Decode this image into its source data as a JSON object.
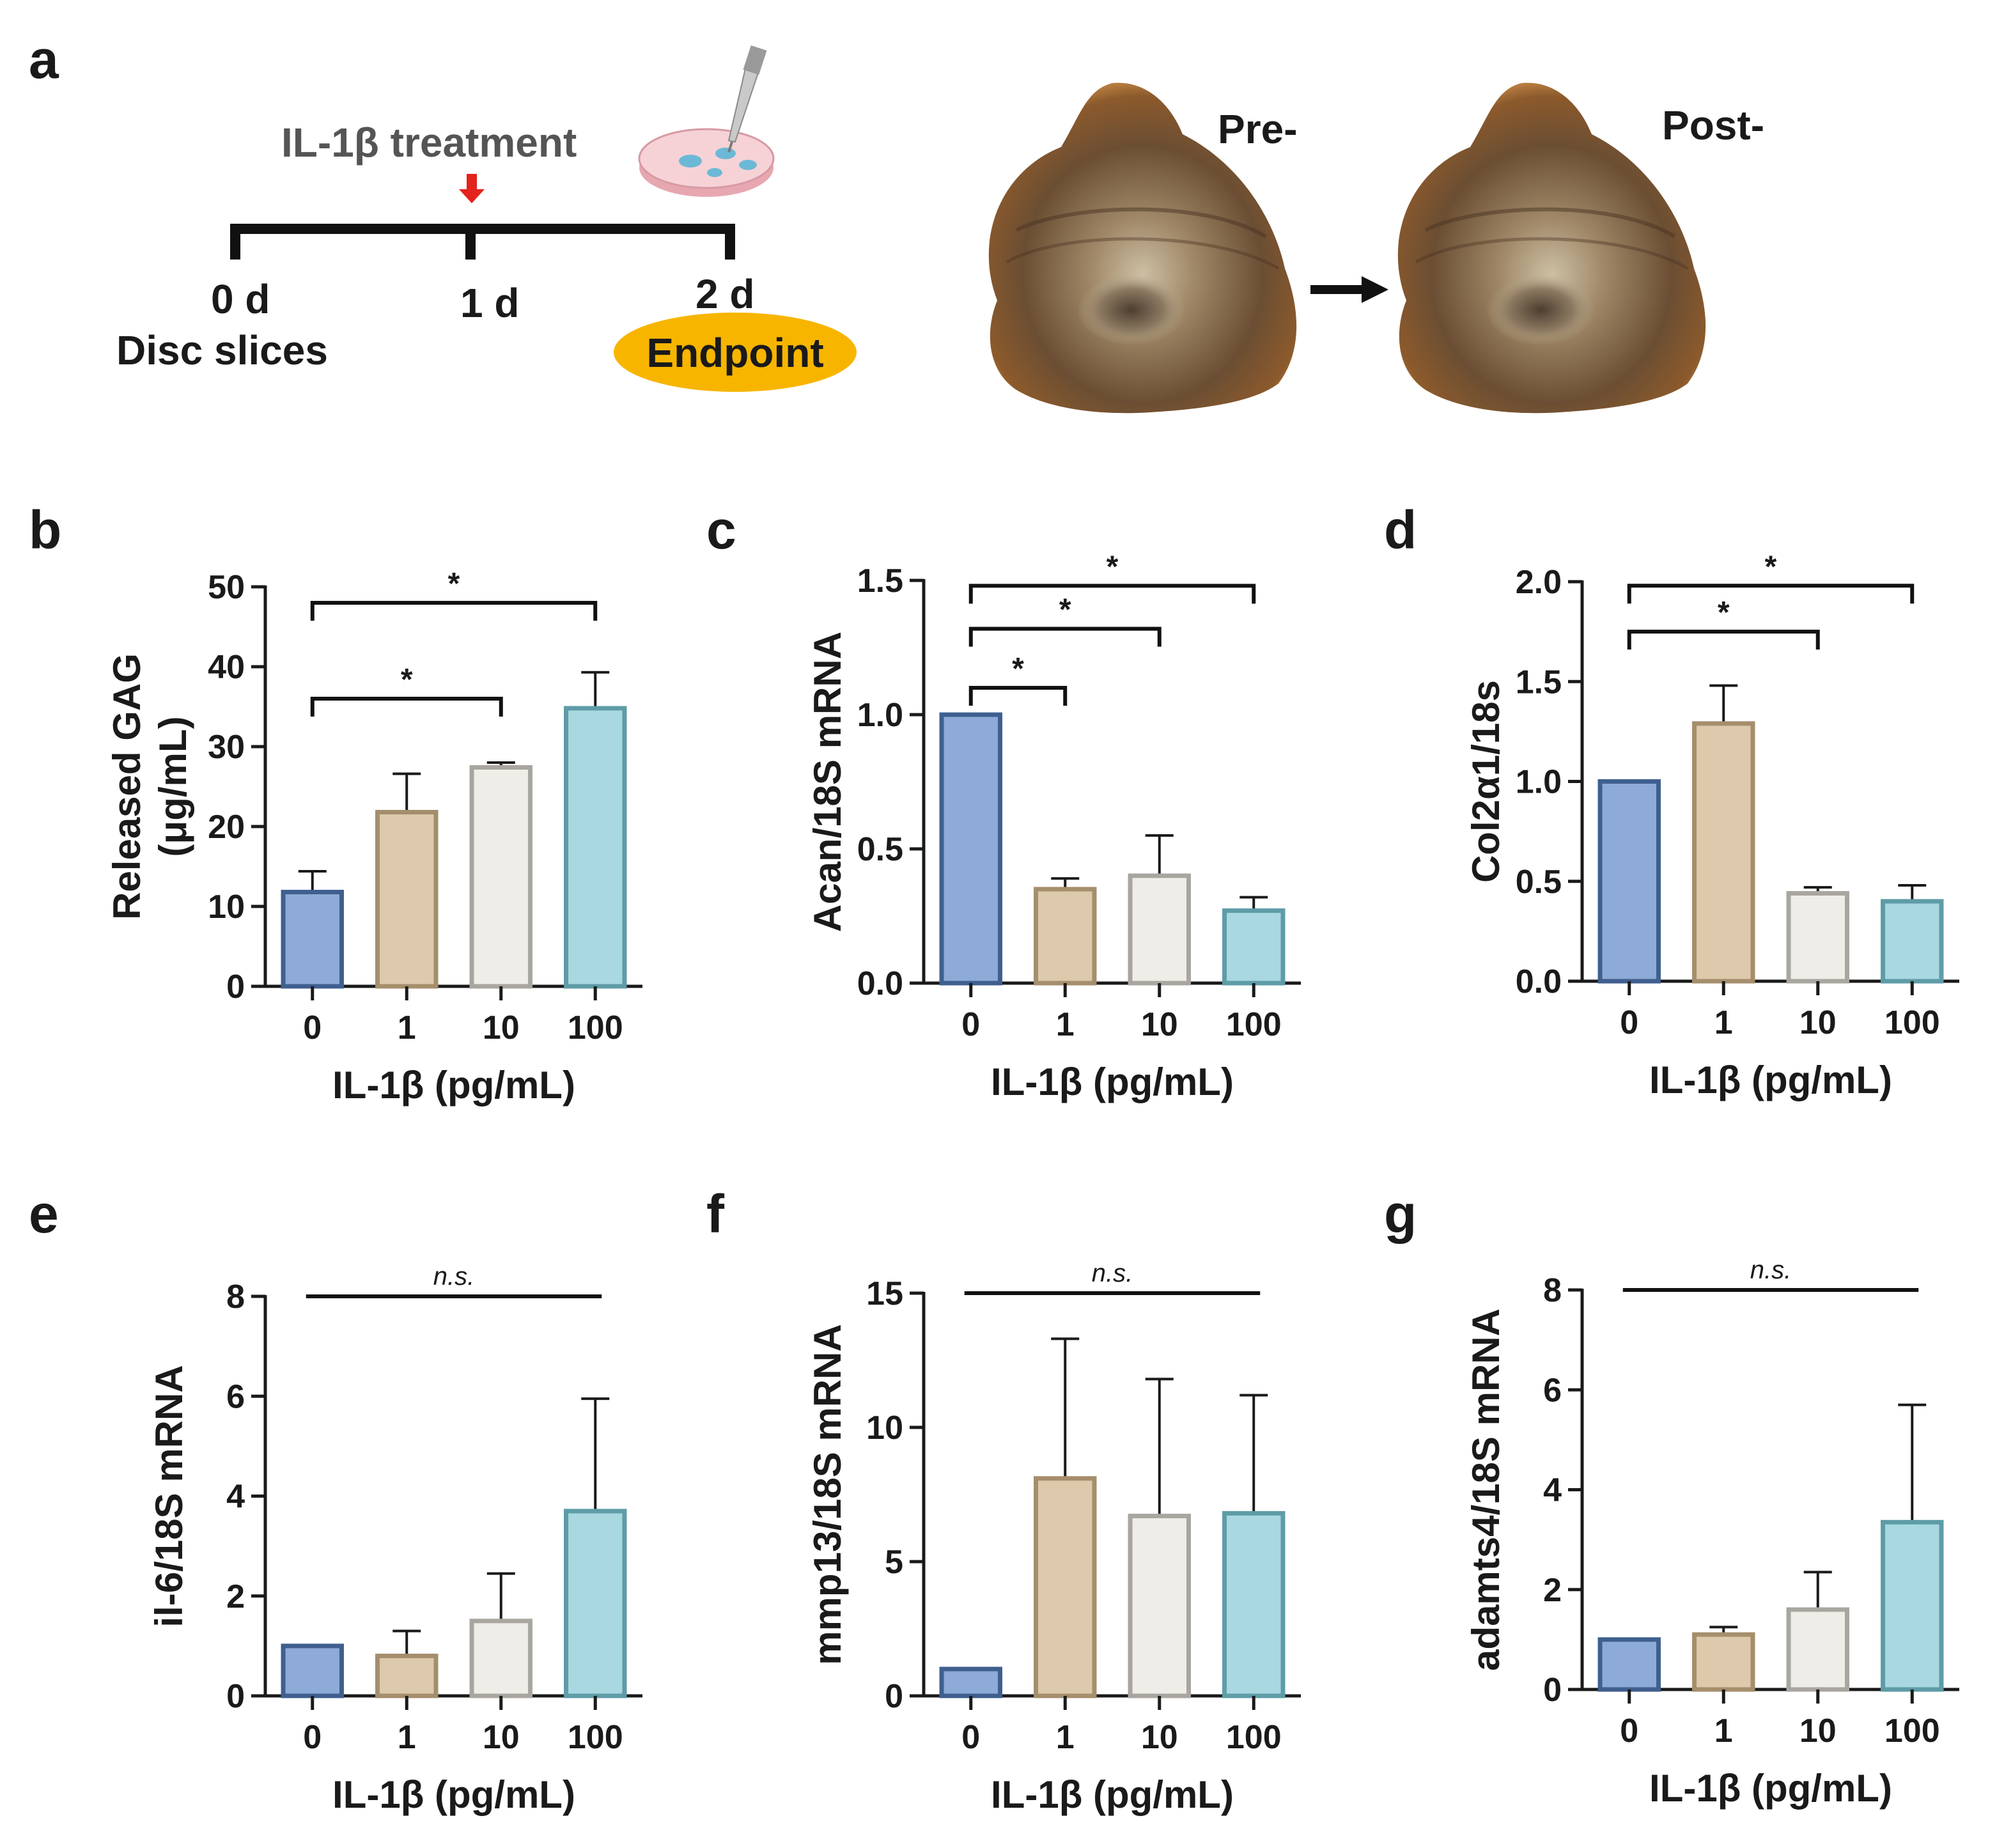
{
  "panel_a": {
    "letter": "a",
    "treatment": "IL-1β treatment",
    "days": [
      "0 d",
      "1 d",
      "2 d"
    ],
    "start_label": "Disc slices",
    "endpoint": "Endpoint",
    "pre": "Pre-",
    "post": "Post-",
    "colors": {
      "arrow": "#e3231c",
      "endpoint": "#f7b500",
      "dish": "#f2c6cc",
      "drops": "#6bb9d6"
    }
  },
  "bar_colors": [
    "#8eaad6",
    "#ddc9ab",
    "#efede8",
    "#a9d8e0"
  ],
  "bar_strokes": [
    "#3f5f8f",
    "#a58e6c",
    "#a9a6a0",
    "#5e9ca7"
  ],
  "chart_data": [
    {
      "panel": "b",
      "type": "bar",
      "categories": [
        "0",
        "1",
        "10",
        "100"
      ],
      "values": [
        11.8,
        21.8,
        27.4,
        34.8
      ],
      "errors": [
        2.6,
        4.8,
        0.6,
        4.5
      ],
      "ylabel": "Released GAG (μg/mL)",
      "xlabel": "IL-1β (pg/mL)",
      "ylim": [
        0,
        50
      ],
      "yticks": [
        0,
        10,
        20,
        30,
        40,
        50
      ],
      "significance": [
        {
          "from": 0,
          "to": 2,
          "label": "*",
          "level": 36
        },
        {
          "from": 0,
          "to": 3,
          "label": "*",
          "level": 48
        }
      ]
    },
    {
      "panel": "c",
      "type": "bar",
      "categories": [
        "0",
        "1",
        "10",
        "100"
      ],
      "values": [
        1.0,
        0.35,
        0.4,
        0.27
      ],
      "errors": [
        0.0,
        0.04,
        0.15,
        0.05
      ],
      "ylabel": "Acan/18S mRNA",
      "xlabel": "IL-1β (pg/mL)",
      "ylim": [
        0,
        1.5
      ],
      "yticks": [
        "0.0",
        "0.5",
        "1.0",
        "1.5"
      ],
      "significance": [
        {
          "from": 0,
          "to": 1,
          "label": "*",
          "level": 1.1
        },
        {
          "from": 0,
          "to": 2,
          "label": "*",
          "level": 1.32
        },
        {
          "from": 0,
          "to": 3,
          "label": "*",
          "level": 1.48
        }
      ]
    },
    {
      "panel": "d",
      "type": "bar",
      "categories": [
        "0",
        "1",
        "10",
        "100"
      ],
      "values": [
        1.0,
        1.29,
        0.44,
        0.4
      ],
      "errors": [
        0.0,
        0.19,
        0.03,
        0.08
      ],
      "ylabel": "Col2α1/18s",
      "xlabel": "IL-1β (pg/mL)",
      "ylim": [
        0,
        2.0
      ],
      "yticks": [
        "0.0",
        "0.5",
        "1.0",
        "1.5",
        "2.0"
      ],
      "significance": [
        {
          "from": 0,
          "to": 2,
          "label": "*",
          "level": 1.75
        },
        {
          "from": 0,
          "to": 3,
          "label": "*",
          "level": 1.98
        }
      ]
    },
    {
      "panel": "e",
      "type": "bar",
      "categories": [
        "0",
        "1",
        "10",
        "100"
      ],
      "values": [
        1.0,
        0.8,
        1.5,
        3.7
      ],
      "errors": [
        0.0,
        0.5,
        0.95,
        2.25
      ],
      "ylabel": "il-6/18S mRNA",
      "xlabel": "IL-1β (pg/mL)",
      "ylim": [
        0,
        8
      ],
      "yticks": [
        0,
        2,
        4,
        6,
        8
      ],
      "significance": [
        {
          "from": 0,
          "to": 3,
          "label": "n.s.",
          "level": 8
        }
      ]
    },
    {
      "panel": "f",
      "type": "bar",
      "categories": [
        "0",
        "1",
        "10",
        "100"
      ],
      "values": [
        1.0,
        8.1,
        6.7,
        6.8
      ],
      "errors": [
        0.0,
        5.2,
        5.1,
        4.4
      ],
      "ylabel": "mmp13/18S mRNA",
      "xlabel": "IL-1β (pg/mL)",
      "ylim": [
        0,
        15
      ],
      "yticks": [
        0,
        5,
        10,
        15
      ],
      "significance": [
        {
          "from": 0,
          "to": 3,
          "label": "n.s.",
          "level": 15
        }
      ]
    },
    {
      "panel": "g",
      "type": "bar",
      "categories": [
        "0",
        "1",
        "10",
        "100"
      ],
      "values": [
        1.0,
        1.1,
        1.6,
        3.35
      ],
      "errors": [
        0.0,
        0.15,
        0.75,
        2.35
      ],
      "ylabel": "adamts4/18S mRNA",
      "xlabel": "IL-1β (pg/mL)",
      "ylim": [
        0,
        8
      ],
      "yticks": [
        0,
        2,
        4,
        6,
        8
      ],
      "significance": [
        {
          "from": 0,
          "to": 3,
          "label": "n.s.",
          "level": 8
        }
      ]
    }
  ]
}
